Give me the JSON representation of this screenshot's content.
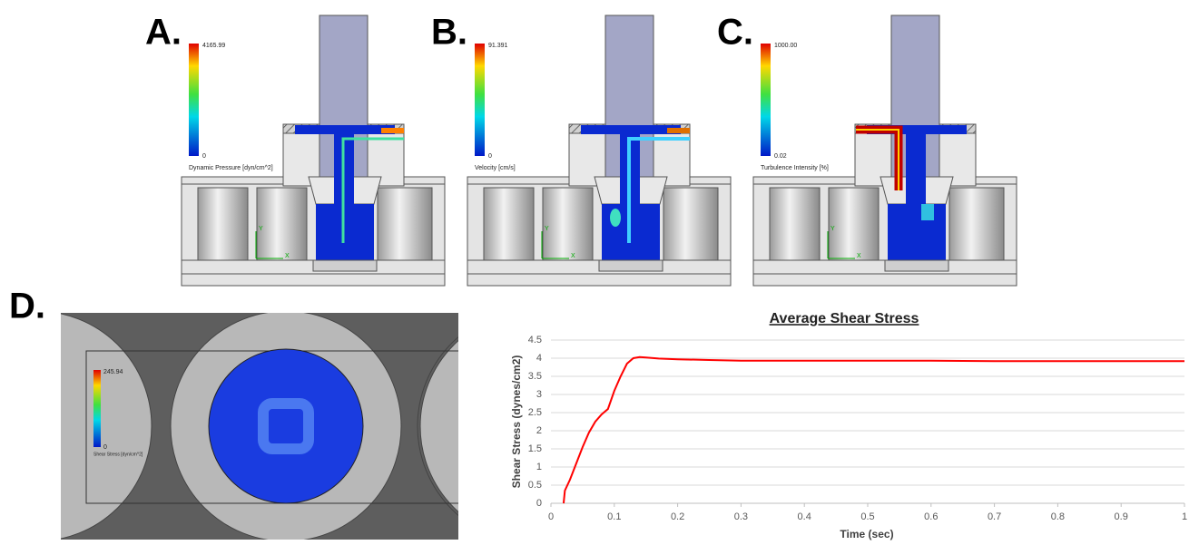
{
  "panels": [
    {
      "label": "A.",
      "max": "4165.99",
      "min": "0",
      "title": "Dynamic Pressure [dyn/cm^2]",
      "axes": [
        "Y",
        "X"
      ]
    },
    {
      "label": "B.",
      "max": "91.391",
      "min": "0",
      "title": "Velocity [cm/s]",
      "axes": [
        "Y",
        "X"
      ]
    },
    {
      "label": "C.",
      "max": "1000.00",
      "min": "0.02",
      "title": "Turbulence Intensity [%]",
      "axes": [
        "Y",
        "X"
      ]
    }
  ],
  "panel_d": {
    "label": "D.",
    "max": "245.94",
    "min": "0",
    "title": "Shear Stress [dyn/cm^2]"
  },
  "chart_data": {
    "type": "line",
    "title": "Average Shear Stress",
    "x_label": "Time (sec)",
    "y_label": "Shear Stress (dynes/cm2)",
    "color": "#ff0000",
    "x": [
      0.02,
      0.022,
      0.03,
      0.04,
      0.05,
      0.06,
      0.07,
      0.08,
      0.09,
      0.1,
      0.11,
      0.12,
      0.13,
      0.14,
      0.15,
      0.17,
      0.2,
      0.25,
      0.3,
      0.4,
      0.5,
      0.6,
      0.7,
      0.8,
      0.9,
      1.0
    ],
    "values": [
      0,
      0.35,
      0.65,
      1.1,
      1.55,
      1.95,
      2.25,
      2.45,
      2.6,
      3.1,
      3.5,
      3.85,
      4.0,
      4.03,
      4.02,
      3.99,
      3.97,
      3.95,
      3.93,
      3.93,
      3.93,
      3.93,
      3.92,
      3.92,
      3.92,
      3.92
    ],
    "xlim": [
      0,
      1
    ],
    "xticks": [
      0,
      0.1,
      0.2,
      0.3,
      0.4,
      0.5,
      0.6,
      0.7,
      0.8,
      0.9,
      1
    ],
    "ylim": [
      0,
      4.5
    ],
    "yticks": [
      0,
      0.5,
      1,
      1.5,
      2,
      2.5,
      3,
      3.5,
      4,
      4.5
    ],
    "grid": true
  }
}
